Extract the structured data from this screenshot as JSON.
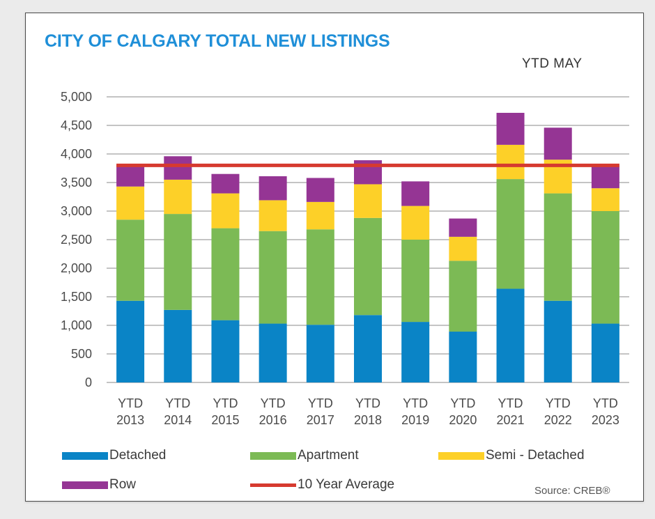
{
  "chart_data": {
    "type": "bar",
    "stacked": true,
    "title": "CITY OF CALGARY TOTAL NEW LISTINGS",
    "subtitle": "YTD  MAY",
    "categories": [
      [
        "YTD",
        "2013"
      ],
      [
        "YTD",
        "2014"
      ],
      [
        "YTD",
        "2015"
      ],
      [
        "YTD",
        "2016"
      ],
      [
        "YTD",
        "2017"
      ],
      [
        "YTD",
        "2018"
      ],
      [
        "YTD",
        "2019"
      ],
      [
        "YTD",
        "2020"
      ],
      [
        "YTD",
        "2021"
      ],
      [
        "YTD",
        "2022"
      ],
      [
        "YTD",
        "2023"
      ]
    ],
    "series": [
      {
        "name": "Detached",
        "color": "#0a84c6",
        "values": [
          1430,
          1270,
          1090,
          1030,
          1010,
          1180,
          1060,
          890,
          1640,
          1430,
          1030
        ]
      },
      {
        "name": "Apartment",
        "color": "#7cba55",
        "values": [
          1420,
          1680,
          1610,
          1620,
          1670,
          1700,
          1440,
          1240,
          1920,
          1880,
          1970
        ]
      },
      {
        "name": "Semi - Detached",
        "color": "#fdd028",
        "values": [
          580,
          600,
          610,
          540,
          480,
          590,
          590,
          420,
          600,
          590,
          400
        ]
      },
      {
        "name": "Row",
        "color": "#953594",
        "values": [
          380,
          410,
          340,
          420,
          420,
          420,
          430,
          320,
          560,
          560,
          400
        ]
      }
    ],
    "average_line": {
      "name": "10 Year Average",
      "value": 3800,
      "color": "#d63a2f"
    },
    "yticks": [
      "0",
      "500",
      "1,000",
      "1,500",
      "2,000",
      "2,500",
      "3,000",
      "3,500",
      "4,000",
      "4,500",
      "5,000"
    ],
    "ylim": [
      0,
      5000
    ],
    "grid": true,
    "legend_position": "bottom",
    "source": "Source: CREB®"
  }
}
